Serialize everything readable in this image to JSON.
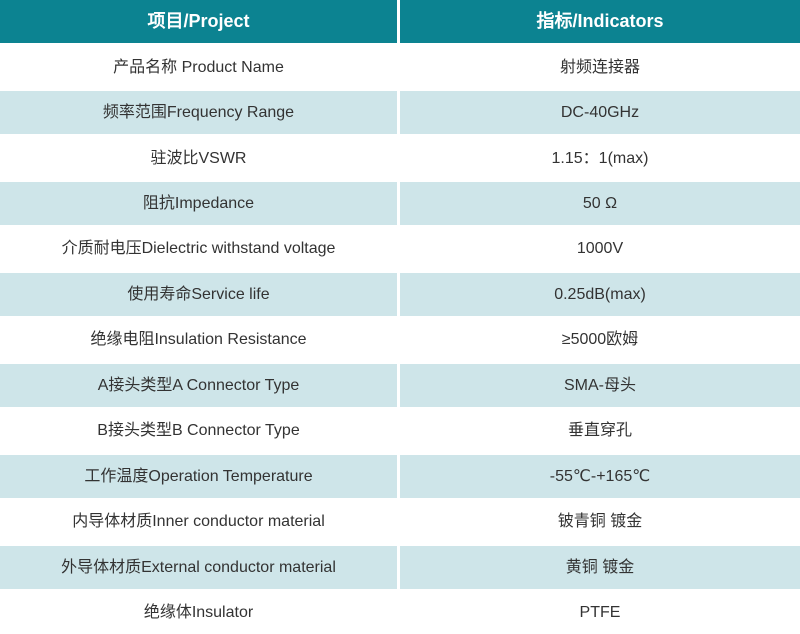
{
  "colors": {
    "header_bg": "#0c8391",
    "header_text": "#ffffff",
    "row_bg": "#ffffff",
    "row_alt_bg": "#cee5e9",
    "body_text": "#333333"
  },
  "table": {
    "headers": [
      "项目/Project",
      "指标/Indicators"
    ],
    "rows": [
      {
        "project": "产品名称 Product Name",
        "indicator": "射频连接器"
      },
      {
        "project": "频率范围Frequency Range",
        "indicator": "DC-40GHz"
      },
      {
        "project": "驻波比VSWR",
        "indicator": "1.15：1(max)"
      },
      {
        "project": "阻抗Impedance",
        "indicator": "50 Ω"
      },
      {
        "project": "介质耐电压Dielectric withstand voltage",
        "indicator": "1000V"
      },
      {
        "project": "使用寿命Service life",
        "indicator": "0.25dB(max)"
      },
      {
        "project": "绝缘电阻Insulation Resistance",
        "indicator": "≥5000欧姆"
      },
      {
        "project": "A接头类型A Connector Type",
        "indicator": "SMA-母头"
      },
      {
        "project": "B接头类型B Connector Type",
        "indicator": "垂直穿孔"
      },
      {
        "project": "工作温度Operation Temperature",
        "indicator": "-55℃-+165℃"
      },
      {
        "project": "内导体材质Inner conductor material",
        "indicator": "铍青铜 镀金"
      },
      {
        "project": "外导体材质External conductor material",
        "indicator": "黄铜 镀金"
      },
      {
        "project": "绝缘体Insulator",
        "indicator": "PTFE"
      }
    ]
  }
}
